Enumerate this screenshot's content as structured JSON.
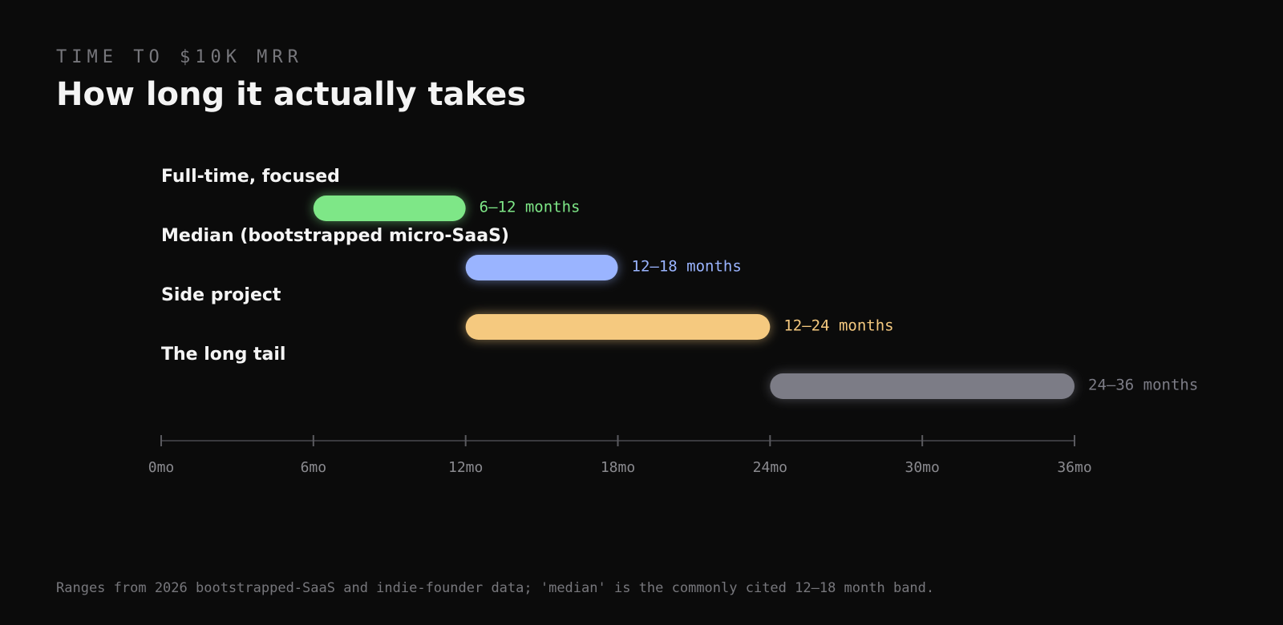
{
  "chart_data": {
    "type": "range_bar",
    "eyebrow": "TIME TO $10K MRR",
    "title": "How long it actually takes",
    "categories": [
      "Full-time, focused",
      "Median (bootstrapped micro-SaaS)",
      "Side project",
      "The long tail"
    ],
    "values": [
      [
        6,
        12
      ],
      [
        12,
        18
      ],
      [
        12,
        24
      ],
      [
        24,
        36
      ]
    ],
    "value_labels": [
      "6–12 months",
      "12–18 months",
      "12–24 months",
      "24–36 months"
    ],
    "colors": [
      "#7ee787",
      "#9ab4ff",
      "#f5c97f",
      "#7c7c86"
    ],
    "xlim": [
      0,
      36
    ],
    "xticks": [
      {
        "value": 0,
        "label": "0mo"
      },
      {
        "value": 6,
        "label": "6mo"
      },
      {
        "value": 12,
        "label": "12mo"
      },
      {
        "value": 18,
        "label": "18mo"
      },
      {
        "value": 24,
        "label": "24mo"
      },
      {
        "value": 30,
        "label": "30mo"
      },
      {
        "value": 36,
        "label": "36mo"
      }
    ],
    "note": "Ranges from 2026 bootstrapped-SaaS and indie-founder data; 'median' is the commonly cited 12–18 month band."
  }
}
